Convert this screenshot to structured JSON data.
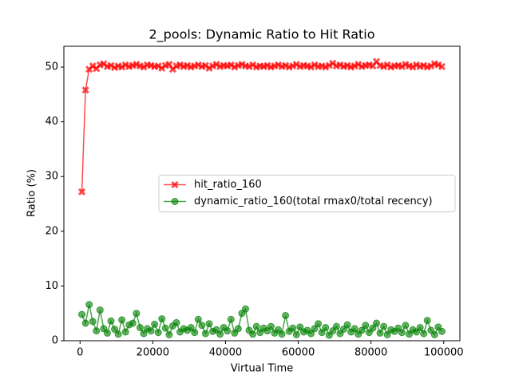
{
  "chart_data": {
    "type": "line",
    "title": "2_pools: Dynamic Ratio to Hit Ratio",
    "xlabel": "Virtual Time",
    "ylabel": "Ratio (%)",
    "x": [
      500,
      1500,
      2500,
      3500,
      4500,
      5500,
      6500,
      7500,
      8500,
      9500,
      10500,
      11500,
      12500,
      13500,
      14500,
      15500,
      16500,
      17500,
      18500,
      19500,
      20500,
      21500,
      22500,
      23500,
      24500,
      25500,
      26500,
      27500,
      28500,
      29500,
      30500,
      31500,
      32500,
      33500,
      34500,
      35500,
      36500,
      37500,
      38500,
      39500,
      40500,
      41500,
      42500,
      43500,
      44500,
      45500,
      46500,
      47500,
      48500,
      49500,
      50500,
      51500,
      52500,
      53500,
      54500,
      55500,
      56500,
      57500,
      58500,
      59500,
      60500,
      61500,
      62500,
      63500,
      64500,
      65500,
      66500,
      67500,
      68500,
      69500,
      70500,
      71500,
      72500,
      73500,
      74500,
      75500,
      76500,
      77500,
      78500,
      79500,
      80500,
      81500,
      82500,
      83500,
      84500,
      85500,
      86500,
      87500,
      88500,
      89500,
      90500,
      91500,
      92500,
      93500,
      94500,
      95500,
      96500,
      97500,
      98500,
      99500
    ],
    "series": [
      {
        "name": "hit_ratio_160",
        "color": "#ff0000",
        "marker": "X",
        "values": [
          27.2,
          45.8,
          49.6,
          50.2,
          49.7,
          50.4,
          50.6,
          50.1,
          50.3,
          49.9,
          50.2,
          50.0,
          50.4,
          50.1,
          50.3,
          50.5,
          50.2,
          50.0,
          50.4,
          50.3,
          50.1,
          50.2,
          49.8,
          50.3,
          50.5,
          49.6,
          50.2,
          50.4,
          50.1,
          50.3,
          50.0,
          50.2,
          50.4,
          50.1,
          50.3,
          49.8,
          50.2,
          50.5,
          50.1,
          50.3,
          50.2,
          50.4,
          50.0,
          50.3,
          50.5,
          50.2,
          50.1,
          50.4,
          50.0,
          50.2,
          50.1,
          50.3,
          50.0,
          50.2,
          50.4,
          50.1,
          50.3,
          50.0,
          50.2,
          50.5,
          50.1,
          50.3,
          50.2,
          50.0,
          50.4,
          50.1,
          50.2,
          50.0,
          50.3,
          50.7,
          50.2,
          50.4,
          50.1,
          50.3,
          50.0,
          50.2,
          50.5,
          50.1,
          50.3,
          50.4,
          50.2,
          51.0,
          50.3,
          50.1,
          50.4,
          50.0,
          50.2,
          50.3,
          50.1,
          50.5,
          50.2,
          50.0,
          50.4,
          50.1,
          50.3,
          50.0,
          50.2,
          50.6,
          50.4,
          50.1
        ]
      },
      {
        "name": "dynamic_ratio_160(total rmax0/total recency)",
        "color": "#008000",
        "marker": "o",
        "values": [
          4.8,
          3.2,
          6.6,
          3.5,
          1.8,
          5.6,
          2.2,
          1.4,
          3.6,
          2.1,
          1.2,
          3.8,
          1.6,
          2.9,
          3.2,
          5.0,
          2.4,
          1.3,
          2.2,
          1.8,
          3.0,
          1.5,
          4.0,
          2.3,
          1.1,
          2.7,
          3.3,
          1.6,
          2.2,
          1.9,
          2.4,
          1.5,
          3.9,
          2.8,
          1.3,
          3.1,
          1.7,
          2.0,
          1.2,
          2.4,
          1.8,
          3.9,
          1.4,
          2.2,
          5.0,
          5.8,
          1.9,
          1.2,
          2.6,
          1.5,
          2.3,
          1.8,
          2.6,
          1.4,
          2.0,
          1.2,
          4.6,
          1.7,
          2.3,
          1.1,
          2.5,
          1.6,
          1.9,
          1.3,
          2.2,
          3.1,
          1.5,
          2.4,
          1.0,
          1.8,
          2.6,
          1.3,
          2.1,
          2.9,
          1.6,
          2.2,
          1.2,
          1.9,
          2.8,
          1.5,
          2.3,
          3.2,
          1.4,
          2.6,
          1.1,
          2.0,
          1.7,
          2.3,
          1.5,
          2.8,
          1.2,
          2.0,
          1.6,
          2.4,
          1.3,
          3.7,
          1.9,
          1.1,
          2.5,
          1.7
        ]
      }
    ],
    "xlim": [
      -4450,
      104450
    ],
    "ylim": [
      0,
      53.8
    ],
    "xticks": [
      0,
      20000,
      40000,
      60000,
      80000,
      100000
    ],
    "yticks": [
      0,
      10,
      20,
      30,
      40,
      50
    ],
    "legend": "center right"
  }
}
